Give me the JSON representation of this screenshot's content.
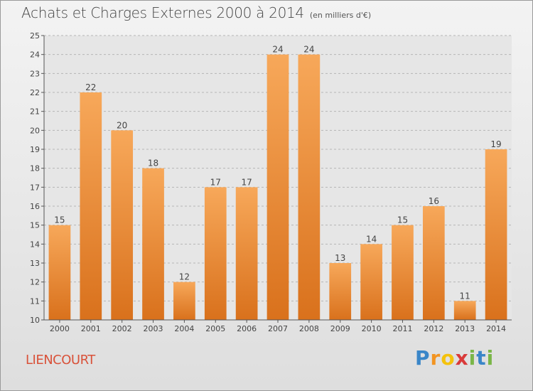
{
  "title": "Achats et Charges Externes 2000 à 2014",
  "subtitle": "(en milliers d'€)",
  "place": "LIENCOURT",
  "brand": {
    "letters": [
      "P",
      "r",
      "o",
      "x",
      "i",
      "t",
      "i"
    ],
    "colors": [
      "#3a86c8",
      "#f29421",
      "#f4c20d",
      "#d93a3a",
      "#7ab648",
      "#3a86c8",
      "#7ab648"
    ]
  },
  "colors": {
    "bar_top": "#f7a85a",
    "bar_bottom": "#d9711c",
    "place": "#d9523a"
  },
  "chart_data": {
    "type": "bar",
    "categories": [
      "2000",
      "2001",
      "2002",
      "2003",
      "2004",
      "2005",
      "2006",
      "2007",
      "2008",
      "2009",
      "2010",
      "2011",
      "2012",
      "2013",
      "2014"
    ],
    "values": [
      15,
      22,
      20,
      18,
      12,
      17,
      17,
      24,
      24,
      13,
      14,
      15,
      16,
      11,
      19
    ],
    "yticks": [
      10,
      11,
      12,
      13,
      14,
      15,
      16,
      17,
      18,
      19,
      20,
      21,
      22,
      23,
      24,
      25
    ],
    "ylim": [
      10,
      25
    ],
    "grid": "horizontal dashed",
    "data_labels": true
  }
}
